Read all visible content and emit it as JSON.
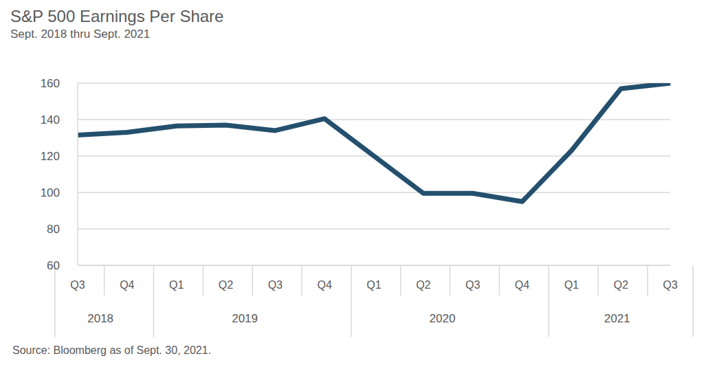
{
  "chart_data": {
    "type": "line",
    "title": "S&P 500 Earnings Per Share",
    "subtitle": "Sept. 2018 thru Sept. 2021",
    "source": "Source: Bloomberg as of Sept. 30, 2021.",
    "categories": [
      "Q3",
      "Q4",
      "Q1",
      "Q2",
      "Q3",
      "Q4",
      "Q1",
      "Q2",
      "Q3",
      "Q4",
      "Q1",
      "Q2",
      "Q3"
    ],
    "category_groups": [
      "2018",
      "2018",
      "2019",
      "2019",
      "2019",
      "2019",
      "2020",
      "2020",
      "2020",
      "2020",
      "2021",
      "2021",
      "2021"
    ],
    "values": [
      131.5,
      133,
      136.5,
      137,
      134,
      140.5,
      120,
      99.5,
      99.5,
      95,
      123,
      157,
      160
    ],
    "color": "#24506e",
    "ylim": [
      60,
      160
    ],
    "yticks": [
      60,
      80,
      100,
      120,
      140,
      160
    ],
    "grid": true
  }
}
